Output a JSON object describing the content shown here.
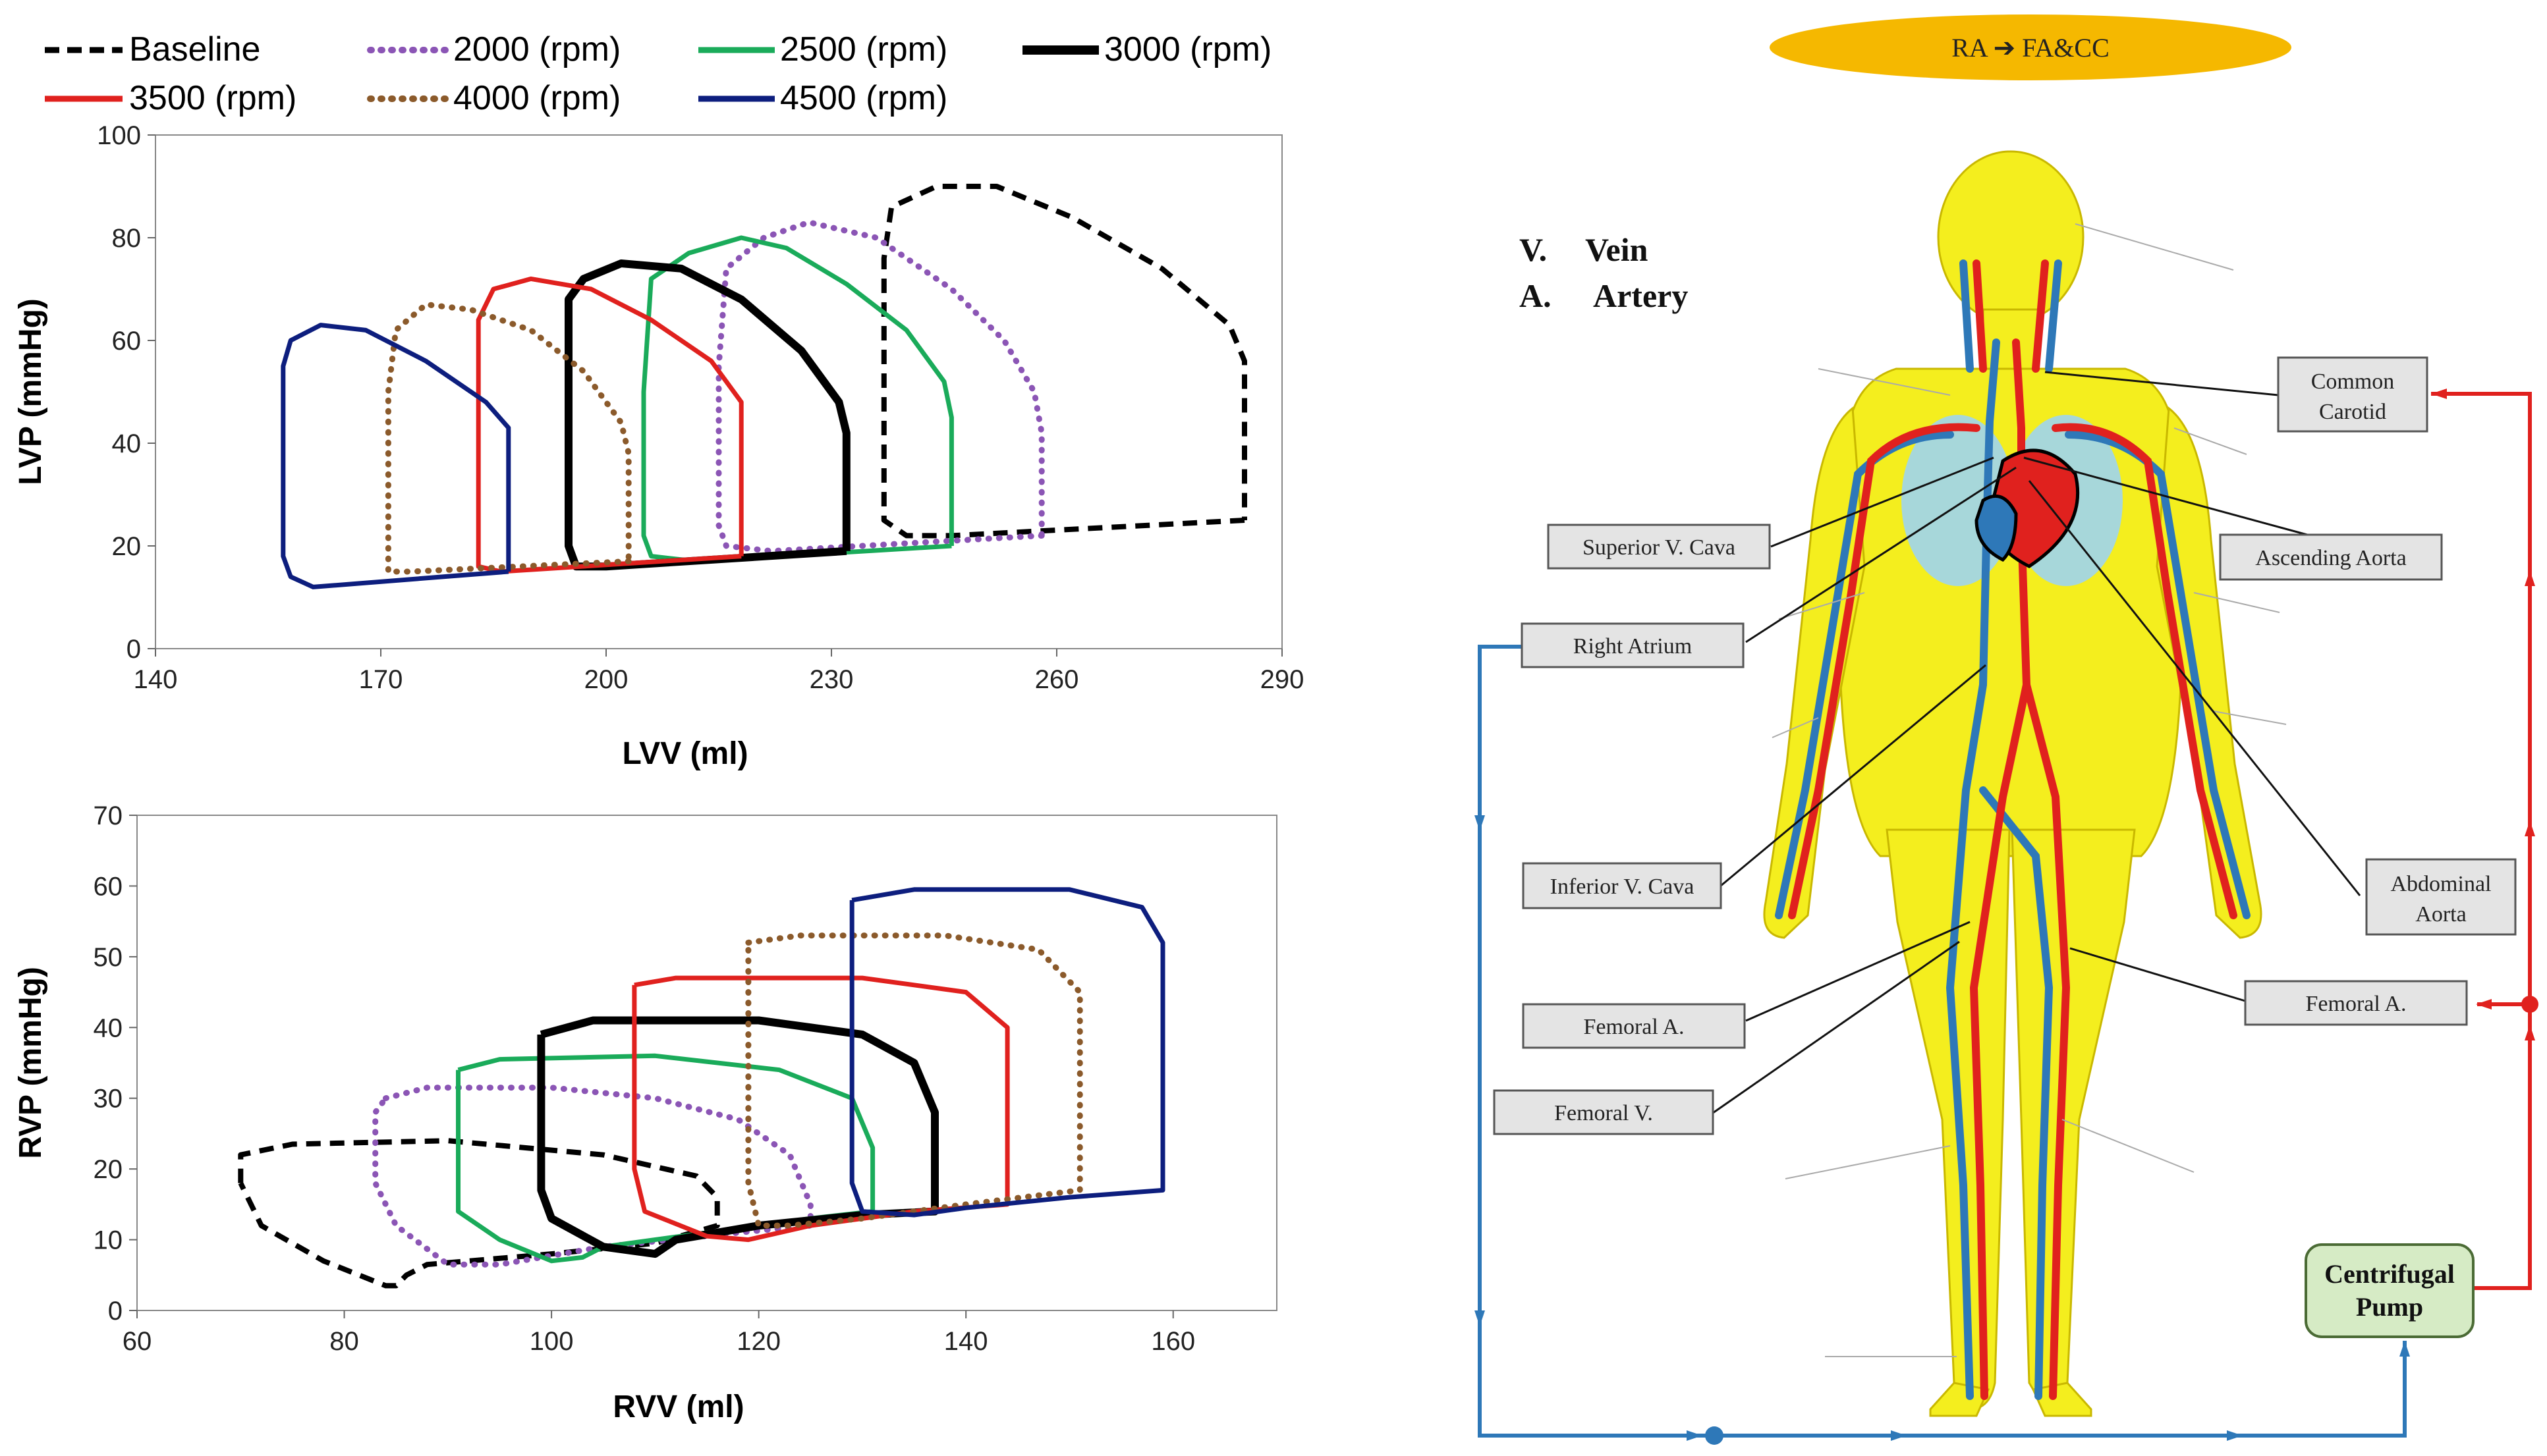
{
  "legend": [
    {
      "name": "Baseline",
      "color": "#000000",
      "style": "dash"
    },
    {
      "name": "2000 (rpm)",
      "color": "#8b55b5",
      "style": "dot"
    },
    {
      "name": "2500 (rpm)",
      "color": "#1aab5a",
      "style": "solid"
    },
    {
      "name": "3000 (rpm)",
      "color": "#000000",
      "style": "solid-thick"
    },
    {
      "name": "3500 (rpm)",
      "color": "#e0211e",
      "style": "solid"
    },
    {
      "name": "4000 (rpm)",
      "color": "#8b5a2b",
      "style": "dot"
    },
    {
      "name": "4500 (rpm)",
      "color": "#0d1e7e",
      "style": "solid"
    }
  ],
  "chart_data": [
    {
      "type": "line",
      "xlabel": "LVV (ml)",
      "ylabel": "LVP (mmHg)",
      "xlim": [
        140,
        290
      ],
      "ylim": [
        0,
        100
      ],
      "xticks": [
        140,
        170,
        200,
        230,
        260,
        290
      ],
      "yticks": [
        0,
        20,
        40,
        60,
        80,
        100
      ],
      "series": [
        {
          "name": "Baseline",
          "points": [
            [
              285,
              25
            ],
            [
              246,
              22
            ],
            [
              240,
              22
            ],
            [
              237,
              25
            ],
            [
              237,
              40
            ],
            [
              237,
              76
            ],
            [
              238,
              86
            ],
            [
              244,
              90
            ],
            [
              252,
              90
            ],
            [
              262,
              84
            ],
            [
              274,
              74
            ],
            [
              283,
              63
            ],
            [
              285,
              56
            ],
            [
              285,
              25
            ]
          ]
        },
        {
          "name": "2000 (rpm)",
          "points": [
            [
              258,
              22
            ],
            [
              222,
              19
            ],
            [
              216,
              20
            ],
            [
              215,
              24
            ],
            [
              215,
              55
            ],
            [
              216,
              74
            ],
            [
              221,
              80
            ],
            [
              227,
              83
            ],
            [
              236,
              80
            ],
            [
              246,
              70
            ],
            [
              253,
              60
            ],
            [
              257,
              50
            ],
            [
              258,
              42
            ],
            [
              258,
              22
            ]
          ]
        },
        {
          "name": "2500 (rpm)",
          "points": [
            [
              246,
              20
            ],
            [
              212,
              17
            ],
            [
              206,
              18
            ],
            [
              205,
              22
            ],
            [
              205,
              50
            ],
            [
              206,
              72
            ],
            [
              211,
              77
            ],
            [
              218,
              80
            ],
            [
              224,
              78
            ],
            [
              232,
              71
            ],
            [
              240,
              62
            ],
            [
              245,
              52
            ],
            [
              246,
              45
            ],
            [
              246,
              20
            ]
          ]
        },
        {
          "name": "3000 (rpm)",
          "points": [
            [
              232,
              19
            ],
            [
              200,
              16
            ],
            [
              196,
              16
            ],
            [
              195,
              20
            ],
            [
              195,
              68
            ],
            [
              197,
              72
            ],
            [
              202,
              75
            ],
            [
              210,
              74
            ],
            [
              218,
              68
            ],
            [
              226,
              58
            ],
            [
              231,
              48
            ],
            [
              232,
              42
            ],
            [
              232,
              19
            ]
          ]
        },
        {
          "name": "3500 (rpm)",
          "points": [
            [
              218,
              18
            ],
            [
              186,
              15
            ],
            [
              183,
              16
            ],
            [
              183,
              20
            ],
            [
              183,
              64
            ],
            [
              185,
              70
            ],
            [
              190,
              72
            ],
            [
              198,
              70
            ],
            [
              206,
              64
            ],
            [
              214,
              56
            ],
            [
              218,
              48
            ],
            [
              218,
              40
            ],
            [
              218,
              18
            ]
          ]
        },
        {
          "name": "4000 (rpm)",
          "points": [
            [
              203,
              17
            ],
            [
              174,
              15
            ],
            [
              171,
              15
            ],
            [
              171,
              19
            ],
            [
              171,
              50
            ],
            [
              172,
              62
            ],
            [
              176,
              67
            ],
            [
              182,
              66
            ],
            [
              190,
              62
            ],
            [
              197,
              54
            ],
            [
              202,
              44
            ],
            [
              203,
              38
            ],
            [
              203,
              17
            ]
          ]
        },
        {
          "name": "4500 (rpm)",
          "points": [
            [
              187,
              15
            ],
            [
              161,
              12
            ],
            [
              158,
              14
            ],
            [
              157,
              18
            ],
            [
              157,
              55
            ],
            [
              158,
              60
            ],
            [
              162,
              63
            ],
            [
              168,
              62
            ],
            [
              176,
              56
            ],
            [
              184,
              48
            ],
            [
              187,
              43
            ],
            [
              187,
              15
            ]
          ]
        }
      ]
    },
    {
      "type": "line",
      "xlabel": "RVV (ml)",
      "ylabel": "RVP (mmHg)",
      "xlim": [
        60,
        170
      ],
      "ylim": [
        0,
        70
      ],
      "xticks": [
        60,
        80,
        100,
        120,
        140,
        160
      ],
      "yticks": [
        0,
        10,
        20,
        30,
        40,
        50,
        60,
        70
      ],
      "series": [
        {
          "name": "Baseline",
          "points": [
            [
              70,
              18
            ],
            [
              70,
              22
            ],
            [
              75,
              23.5
            ],
            [
              90,
              24
            ],
            [
              105,
              22
            ],
            [
              114,
              19
            ],
            [
              116,
              16
            ],
            [
              116,
              12
            ],
            [
              110,
              9.5
            ],
            [
              100,
              8
            ],
            [
              88,
              6.5
            ],
            [
              86,
              5
            ],
            [
              85,
              3.5
            ],
            [
              84,
              3.5
            ],
            [
              78,
              7
            ],
            [
              72,
              12
            ],
            [
              70,
              18
            ]
          ]
        },
        {
          "name": "2000 (rpm)",
          "points": [
            [
              84,
              30
            ],
            [
              88,
              31.5
            ],
            [
              100,
              31.5
            ],
            [
              110,
              30
            ],
            [
              118,
              27
            ],
            [
              123,
              22
            ],
            [
              125,
              15
            ],
            [
              125,
              12
            ],
            [
              118,
              11
            ],
            [
              105,
              9
            ],
            [
              95,
              6.5
            ],
            [
              90,
              6.5
            ],
            [
              85,
              12
            ],
            [
              83,
              18
            ],
            [
              83,
              28
            ],
            [
              84,
              30
            ]
          ]
        },
        {
          "name": "2500 (rpm)",
          "points": [
            [
              91,
              34
            ],
            [
              95,
              35.5
            ],
            [
              110,
              36
            ],
            [
              122,
              34
            ],
            [
              129,
              30
            ],
            [
              131,
              23
            ],
            [
              131,
              14
            ],
            [
              125,
              13
            ],
            [
              115,
              11
            ],
            [
              105,
              9
            ],
            [
              103,
              7.5
            ],
            [
              100,
              7
            ],
            [
              95,
              10
            ],
            [
              91,
              14
            ],
            [
              91,
              34
            ]
          ]
        },
        {
          "name": "3000 (rpm)",
          "points": [
            [
              99,
              39
            ],
            [
              104,
              41
            ],
            [
              120,
              41
            ],
            [
              130,
              39
            ],
            [
              135,
              35
            ],
            [
              137,
              28
            ],
            [
              137,
              14
            ],
            [
              130,
              13.5
            ],
            [
              120,
              12
            ],
            [
              112,
              10
            ],
            [
              110,
              8
            ],
            [
              105,
              9
            ],
            [
              100,
              13
            ],
            [
              99,
              17
            ],
            [
              99,
              39
            ]
          ]
        },
        {
          "name": "3500 (rpm)",
          "points": [
            [
              108,
              46
            ],
            [
              112,
              47
            ],
            [
              130,
              47
            ],
            [
              140,
              45
            ],
            [
              144,
              40
            ],
            [
              144,
              15
            ],
            [
              135,
              14
            ],
            [
              125,
              12
            ],
            [
              119,
              10
            ],
            [
              115,
              10.5
            ],
            [
              109,
              14
            ],
            [
              108,
              20
            ],
            [
              108,
              46
            ]
          ]
        },
        {
          "name": "4000 (rpm)",
          "points": [
            [
              119,
              52
            ],
            [
              124,
              53
            ],
            [
              138,
              53
            ],
            [
              147,
              51
            ],
            [
              151,
              45
            ],
            [
              151,
              17
            ],
            [
              140,
              15
            ],
            [
              130,
              13
            ],
            [
              123,
              12
            ],
            [
              120,
              12
            ],
            [
              119,
              18
            ],
            [
              119,
              52
            ]
          ]
        },
        {
          "name": "4500 (rpm)",
          "points": [
            [
              129,
              58
            ],
            [
              135,
              59.5
            ],
            [
              150,
              59.5
            ],
            [
              157,
              57
            ],
            [
              159,
              52
            ],
            [
              159,
              17
            ],
            [
              150,
              16
            ],
            [
              140,
              14.5
            ],
            [
              135,
              13.5
            ],
            [
              130,
              14
            ],
            [
              129,
              18
            ],
            [
              129,
              58
            ]
          ]
        }
      ]
    }
  ],
  "diagram": {
    "header": "RA ➔ FA&CC",
    "key": [
      {
        "abbr": "V.",
        "text": "Vein"
      },
      {
        "abbr": "A.",
        "text": "Artery"
      }
    ],
    "labels": {
      "common_carotid_1": "Common",
      "common_carotid_2": "Carotid",
      "superior_v_cava": "Superior V. Cava",
      "ascending_aorta": "Ascending Aorta",
      "right_atrium": "Right Atrium",
      "inferior_v_cava": "Inferior V. Cava",
      "abdominal_aorta_1": "Abdominal",
      "abdominal_aorta_2": "Aorta",
      "femoral_a_left": "Femoral A.",
      "femoral_a_right": "Femoral A.",
      "femoral_v": "Femoral V.",
      "pump_1": "Centrifugal",
      "pump_2": "Pump"
    },
    "colors": {
      "header_fill": "#f5b800",
      "body_fill": "#f4ee1e",
      "artery": "#e0211e",
      "vein": "#2e78b8",
      "pump_fill": "#d6ebc5",
      "label_fill": "#e4e4e4"
    }
  }
}
